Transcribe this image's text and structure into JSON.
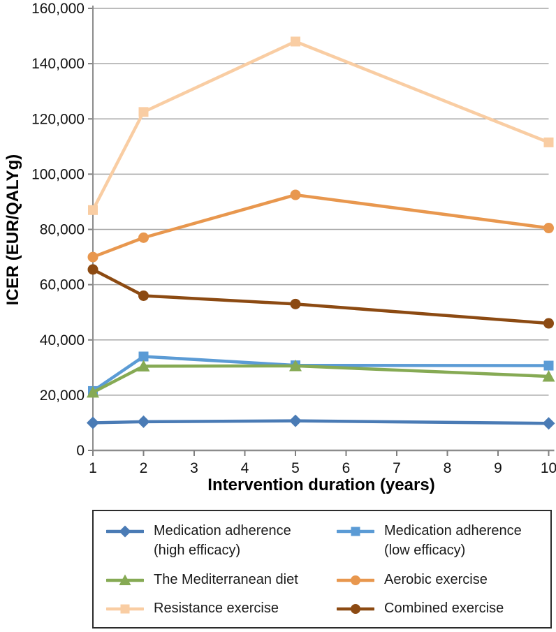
{
  "chart_data": {
    "type": "line",
    "title": "",
    "xlabel": "Intervention duration (years)",
    "ylabel": "ICER (EUR/QALYg)",
    "x": [
      1,
      2,
      5,
      10
    ],
    "xlim": [
      1,
      10
    ],
    "xticks": [
      1,
      2,
      3,
      4,
      5,
      6,
      7,
      8,
      9,
      10
    ],
    "xtick_labels": [
      "1",
      "2",
      "3",
      "4",
      "5",
      "6",
      "7",
      "8",
      "9",
      "10"
    ],
    "ylim": [
      0,
      160000
    ],
    "yticks": [
      0,
      20000,
      40000,
      60000,
      80000,
      100000,
      120000,
      140000,
      160000
    ],
    "ytick_labels": [
      "0",
      "20,000",
      "40,000",
      "60,000",
      "80,000",
      "100,000",
      "120,000",
      "140,000",
      "160,000"
    ],
    "grid": "horizontal",
    "legend_position": "bottom-boxed",
    "series": [
      {
        "name": "Medication adherence\n(high efficacy)",
        "marker": "diamond",
        "color": "#4a7bb5",
        "values": [
          10000,
          10400,
          10700,
          9800
        ]
      },
      {
        "name": "Medication adherence\n(low efficacy)",
        "marker": "square",
        "color": "#5b9bd5",
        "values": [
          21500,
          34000,
          30800,
          30700
        ]
      },
      {
        "name": "The Mediterranean diet",
        "marker": "triangle",
        "color": "#86aa54",
        "values": [
          21000,
          30500,
          30600,
          26800
        ]
      },
      {
        "name": "Aerobic exercise",
        "marker": "circle",
        "color": "#e8974e",
        "values": [
          70000,
          77000,
          92500,
          80500
        ]
      },
      {
        "name": "Resistance exercise",
        "marker": "square",
        "color": "#f9cda3",
        "values": [
          87000,
          122500,
          148000,
          111500
        ]
      },
      {
        "name": "Combined exercise",
        "marker": "circle",
        "color": "#8c4a12",
        "values": [
          65500,
          56000,
          53000,
          46000
        ]
      }
    ],
    "draw_order": [
      4,
      3,
      5,
      1,
      2,
      0
    ],
    "legend_order": [
      0,
      1,
      2,
      3,
      4,
      5
    ]
  },
  "style_colors": {
    "gridline": "#a6a6a6",
    "axis_line": "#8c8c8c",
    "tick": "#7f7f7f",
    "text": "#111111"
  }
}
